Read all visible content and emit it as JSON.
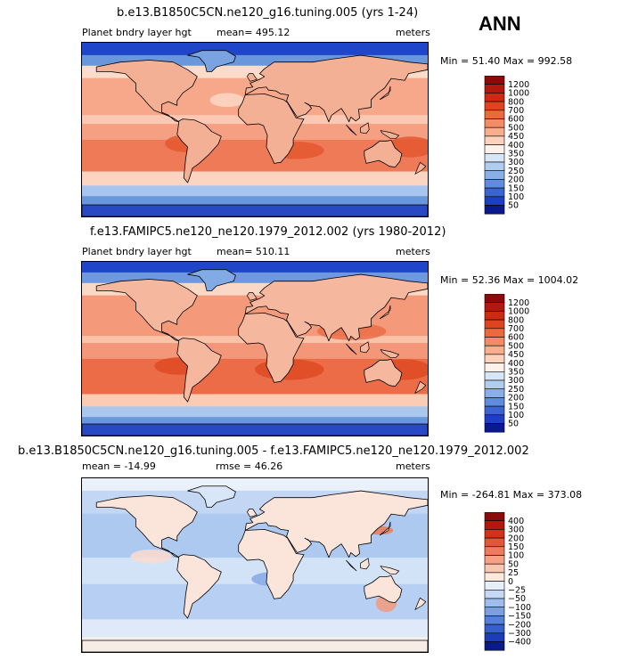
{
  "season_label": "ANN",
  "panels": [
    {
      "title": "b.e13.B1850C5CN.ne120_g16.tuning.005 (yrs 1-24)",
      "left_label": "Planet bndry layer hgt",
      "mid_label": "mean= 495.12",
      "right_label": "meters",
      "minmax": "Min =  51.40 Max = 992.58",
      "colorbar": {
        "labels": [
          "1200",
          "1000",
          "800",
          "700",
          "600",
          "500",
          "450",
          "400",
          "350",
          "300",
          "250",
          "200",
          "150",
          "100",
          "50"
        ],
        "colors": [
          "#8b0a0a",
          "#b2180e",
          "#cc2a12",
          "#de4420",
          "#ea6a3e",
          "#f38c64",
          "#f8ae8c",
          "#fcd2bc",
          "#fdf1ea",
          "#d6e6f7",
          "#b0cdf0",
          "#88b0e6",
          "#5d8ddc",
          "#3a64d2",
          "#1e3ec4",
          "#0a1a8e"
        ]
      }
    },
    {
      "title": "f.e13.FAMIPC5.ne120_ne120.1979_2012.002 (yrs 1980-2012)",
      "left_label": "Planet bndry layer hgt",
      "mid_label": "mean= 510.11",
      "right_label": "meters",
      "minmax": "Min =  52.36 Max = 1004.02",
      "colorbar": {
        "labels": [
          "1200",
          "1000",
          "800",
          "700",
          "600",
          "500",
          "450",
          "400",
          "350",
          "300",
          "250",
          "200",
          "150",
          "100",
          "50"
        ],
        "colors": [
          "#8b0a0a",
          "#b2180e",
          "#cc2a12",
          "#de4420",
          "#ea6a3e",
          "#f38c64",
          "#f8ae8c",
          "#fcd2bc",
          "#fdf1ea",
          "#d6e6f7",
          "#b0cdf0",
          "#88b0e6",
          "#5d8ddc",
          "#3a64d2",
          "#1e3ec4",
          "#0a1a8e"
        ]
      }
    },
    {
      "title": "b.e13.B1850C5CN.ne120_g16.tuning.005 - f.e13.FAMIPC5.ne120_ne120.1979_2012.002",
      "left_label": "mean = -14.99",
      "mid_label": "rmse =  46.26",
      "right_label": "meters",
      "minmax": "Min = -264.81 Max = 373.08",
      "colorbar": {
        "labels": [
          "400",
          "300",
          "200",
          "150",
          "100",
          "50",
          "25",
          "0",
          "−25",
          "−50",
          "−100",
          "−150",
          "−200",
          "−300",
          "−400"
        ],
        "colors": [
          "#8b0a0a",
          "#b2180e",
          "#d0321a",
          "#e4563a",
          "#f07a5c",
          "#f6a084",
          "#fac6b0",
          "#fde8dc",
          "#e6eefa",
          "#c6d8f4",
          "#9ebdec",
          "#7aa0e2",
          "#5480d8",
          "#3660cc",
          "#1c3cb8",
          "#0a1a86"
        ]
      }
    }
  ],
  "chart_data": [
    {
      "type": "heatmap",
      "title": "b.e13.B1850C5CN.ne120_g16.tuning.005 (yrs 1-24)",
      "variable": "Planet bndry layer hgt",
      "units": "meters",
      "mean": 495.12,
      "min": 51.4,
      "max": 992.58,
      "contour_levels": [
        50,
        100,
        150,
        200,
        250,
        300,
        350,
        400,
        450,
        500,
        600,
        700,
        800,
        1000,
        1200
      ]
    },
    {
      "type": "heatmap",
      "title": "f.e13.FAMIPC5.ne120_ne120.1979_2012.002 (yrs 1980-2012)",
      "variable": "Planet bndry layer hgt",
      "units": "meters",
      "mean": 510.11,
      "min": 52.36,
      "max": 1004.02,
      "contour_levels": [
        50,
        100,
        150,
        200,
        250,
        300,
        350,
        400,
        450,
        500,
        600,
        700,
        800,
        1000,
        1200
      ]
    },
    {
      "type": "heatmap",
      "title": "b.e13.B1850C5CN.ne120_g16.tuning.005 - f.e13.FAMIPC5.ne120_ne120.1979_2012.002",
      "units": "meters",
      "mean": -14.99,
      "rmse": 46.26,
      "min": -264.81,
      "max": 373.08,
      "contour_levels": [
        -400,
        -300,
        -200,
        -150,
        -100,
        -50,
        -25,
        0,
        25,
        50,
        100,
        150,
        200,
        300,
        400
      ]
    }
  ]
}
